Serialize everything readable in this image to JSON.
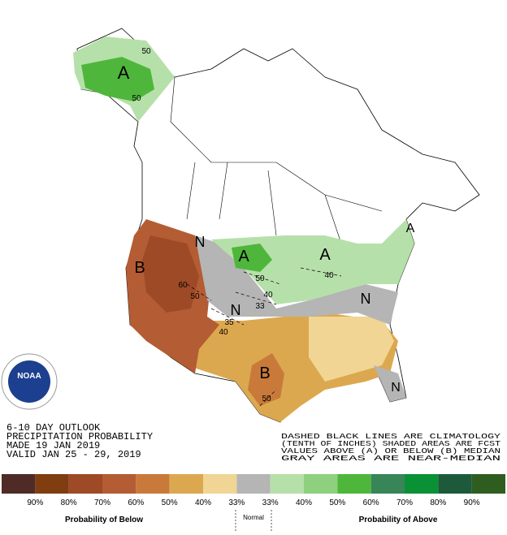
{
  "title_block": [
    "6-10 DAY OUTLOOK",
    "PRECIPITATION PROBABILITY",
    "MADE  19 JAN 2019",
    "VALID   JAN 25 - 29, 2019"
  ],
  "notes": [
    "DASHED BLACK LINES ARE CLIMATOLOGY",
    "(TENTH OF INCHES) SHADED AREAS ARE FCST",
    "VALUES ABOVE (A) OR BELOW (B) MEDIAN",
    "GRAY AREAS ARE NEAR-MEDIAN"
  ],
  "logo": "NOAA",
  "map_labels": [
    "A",
    "50",
    "50",
    "B",
    "60",
    "50",
    "N",
    "A",
    "50",
    "40",
    "33",
    "A",
    "40",
    "A",
    "N",
    "35",
    "40",
    "N",
    "B",
    "50",
    "N"
  ],
  "legend": {
    "colors": [
      "#4f2b25",
      "#7f3d10",
      "#9e4a26",
      "#b45c33",
      "#c97a3a",
      "#dca84f",
      "#f1d594",
      "#b5b5b5",
      "#b6e0a9",
      "#8ed07e",
      "#4fb63c",
      "#388558",
      "#0a9136",
      "#1d5a3b",
      "#2e5d1f"
    ],
    "labels": [
      "90%",
      "80%",
      "70%",
      "60%",
      "50%",
      "40%",
      "33%",
      "33%",
      "40%",
      "50%",
      "60%",
      "70%",
      "80%",
      "90%"
    ],
    "below": "Probability of Below",
    "normal": "Normal",
    "above": "Probability of Above"
  }
}
